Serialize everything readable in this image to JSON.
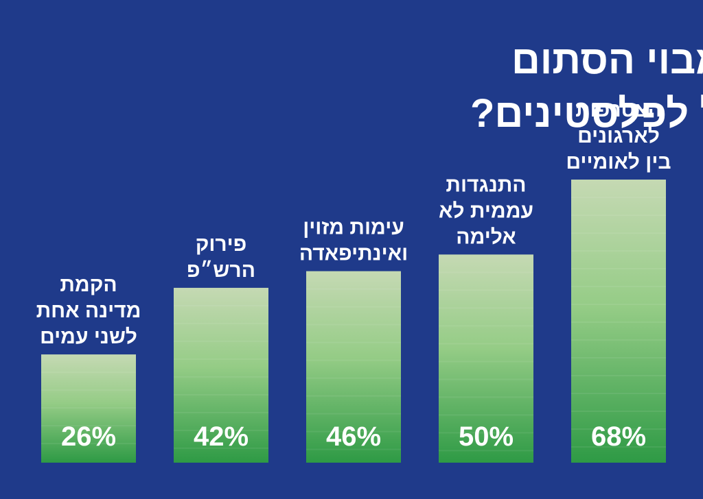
{
  "colors": {
    "background": "#1f3a8a",
    "bar_top": "#c5d9b3",
    "bar_mid": "#8fca80",
    "bar_bottom": "#2e9a45",
    "text": "#ffffff"
  },
  "chart_data": {
    "type": "bar",
    "title_lines": [
      "מהו הפתרון למבוי הסתום",
      "בין ישראל לפלסטינים?"
    ],
    "categories": [
      [
        "הקמת",
        "מדינה אחת",
        "לשני עמים"
      ],
      [
        "פירוק",
        "הרש״פ"
      ],
      [
        "עימות מזוין",
        "ואינתיפאדה"
      ],
      [
        "התנגדות",
        "עממית לא",
        "אלימה"
      ],
      [
        "הצטרפות",
        "לארגונים",
        "בין לאומיים"
      ]
    ],
    "values": [
      26,
      42,
      46,
      50,
      68
    ],
    "value_labels": [
      "26%",
      "42%",
      "46%",
      "50%",
      "68%"
    ],
    "ylim": [
      0,
      68
    ],
    "grid": false,
    "legend": "none"
  }
}
